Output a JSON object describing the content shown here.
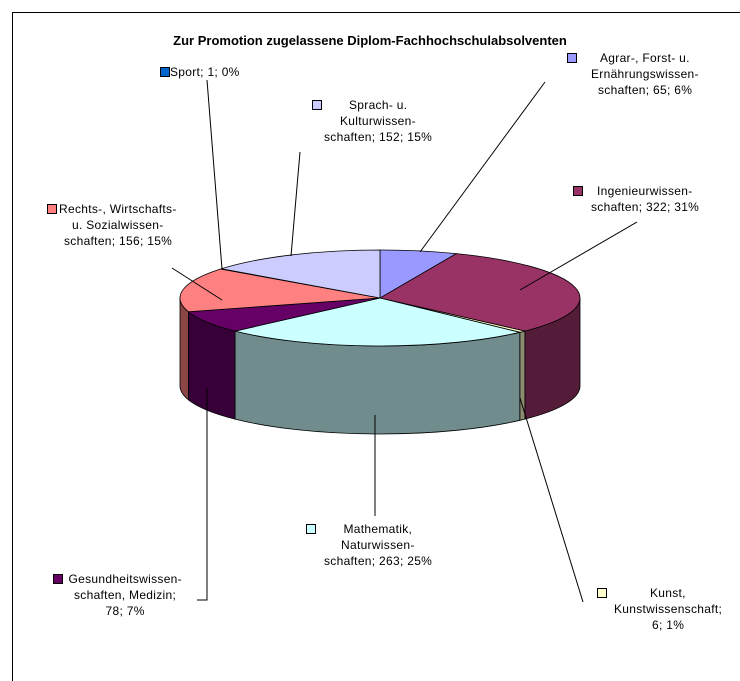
{
  "chart_data": {
    "type": "pie",
    "title": "Zur Promotion zugelassene Diplom-Fachhochschulabsolventen",
    "values": [
      65,
      322,
      6,
      263,
      78,
      156,
      1,
      152
    ],
    "value_labels": [
      [
        "Agrar-, Forst- u.",
        "Ernährungswissen-",
        "schaften; 65; 6%"
      ],
      [
        "Ingenieurwissen-",
        "schaften; 322; 31%"
      ],
      [
        "Kunst,",
        "Kunstwissenschaft;",
        "6; 1%"
      ],
      [
        "Mathematik,",
        "Naturwissen-",
        "schaften; 263; 25%"
      ],
      [
        "Gesundheitswissen-",
        "schaften, Medizin;",
        "78; 7%"
      ],
      [
        "Rechts-, Wirtschafts-",
        "u. Sozialwissen-",
        "schaften; 156; 15%"
      ],
      [
        "Sport; 1; 0%"
      ],
      [
        "Sprach- u.",
        "Kulturwissen-",
        "schaften; 152; 15%"
      ]
    ],
    "colors": [
      "#9999ff",
      "#993366",
      "#ffffcc",
      "#ccffff",
      "#660066",
      "#ff8080",
      "#0066cc",
      "#ccccff"
    ]
  }
}
